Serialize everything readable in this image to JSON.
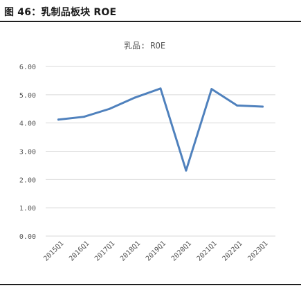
{
  "figure_title": "图 46：乳制品板块 ROE",
  "chart_data": {
    "type": "line",
    "title": "乳品: ROE",
    "categories": [
      "2015Q1",
      "2016Q1",
      "2017Q1",
      "2018Q1",
      "2019Q1",
      "2020Q1",
      "2021Q1",
      "2022Q1",
      "2023Q1"
    ],
    "series": [
      {
        "values": [
          4.12,
          4.22,
          4.5,
          4.9,
          5.22,
          2.32,
          5.2,
          4.62,
          4.58
        ],
        "color": "#4f81bd"
      }
    ],
    "y_ticks": [
      "0.00",
      "1.00",
      "2.00",
      "3.00",
      "4.00",
      "5.00",
      "6.00"
    ],
    "ylim": [
      0,
      6
    ],
    "grid": true,
    "legend": "none"
  }
}
